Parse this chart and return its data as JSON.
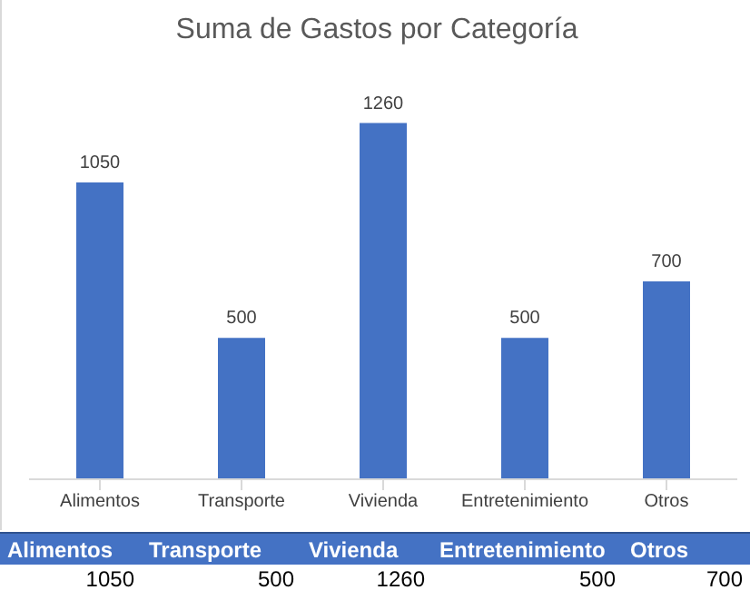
{
  "chart_data": {
    "type": "bar",
    "title": "Suma de Gastos por Categoría",
    "categories": [
      "Alimentos",
      "Transporte",
      "Vivienda",
      "Entretenimiento",
      "Otros"
    ],
    "values": [
      1050,
      500,
      1260,
      500,
      700
    ],
    "color": "#4472c4",
    "annotations": [
      "1050",
      "500",
      "1260",
      "500",
      "700"
    ],
    "tick_labels": "x",
    "data_labels": true,
    "grid": false,
    "legend": false
  }
}
